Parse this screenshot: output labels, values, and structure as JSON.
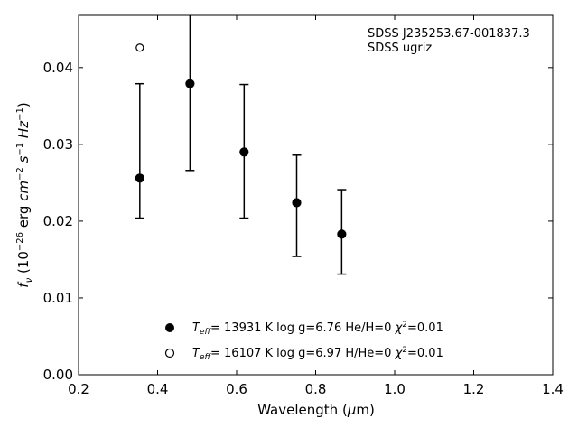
{
  "chart_data": {
    "type": "scatter",
    "annotation": [
      "SDSS J235253.67-001837.3",
      "SDSS ugriz"
    ],
    "xlabel": "Wavelength (μm)",
    "ylabel": "f_ν (10^-26 erg cm^-2 s^-1 Hz^-1)",
    "xlim": [
      0.2,
      1.4
    ],
    "ylim": [
      0.0,
      0.0468
    ],
    "xticks": [
      0.2,
      0.4,
      0.6,
      0.8,
      1.0,
      1.2,
      1.4
    ],
    "xtick_labels": [
      "0.2",
      "0.4",
      "0.6",
      "0.8",
      "1.0",
      "1.2",
      "1.4"
    ],
    "yticks": [
      0.0,
      0.01,
      0.02,
      0.03,
      0.04
    ],
    "ytick_labels": [
      "0.00",
      "0.01",
      "0.02",
      "0.03",
      "0.04"
    ],
    "grid": false,
    "legend_position": "bottom-center",
    "series": [
      {
        "name": "Teff= 13931 K  log g=6.76  He/H=0  χ²=0.01",
        "marker": "filled-circle",
        "points": [
          {
            "x": 0.355,
            "y": 0.0256,
            "ylo": 0.0204,
            "yhi": 0.0379
          },
          {
            "x": 0.482,
            "y": 0.0379,
            "ylo": 0.0266,
            "yhi": 0.0468
          },
          {
            "x": 0.619,
            "y": 0.029,
            "ylo": 0.0204,
            "yhi": 0.0378
          },
          {
            "x": 0.752,
            "y": 0.0224,
            "ylo": 0.0154,
            "yhi": 0.0286
          },
          {
            "x": 0.866,
            "y": 0.0183,
            "ylo": 0.0131,
            "yhi": 0.0241
          }
        ]
      },
      {
        "name": "Teff= 16107 K  log g=6.97  H/He=0  χ²=0.01",
        "marker": "open-circle",
        "points": [
          {
            "x": 0.355,
            "y": 0.0426
          }
        ]
      }
    ],
    "legend_entries": [
      {
        "teff": "= 13931 K  log g=6.76  He/H=0  ",
        "chi": "=0.01"
      },
      {
        "teff": "= 16107 K  log g=6.97  H/He=0  ",
        "chi": "=0.01"
      }
    ]
  }
}
